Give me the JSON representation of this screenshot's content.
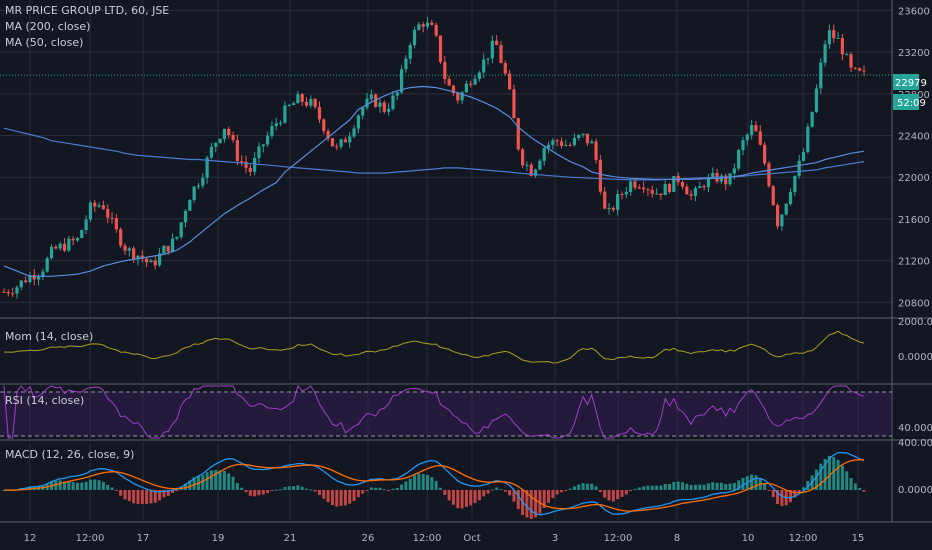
{
  "header": {
    "symbol": "MR PRICE GROUP LTD, 60, JSE",
    "ma200": "MA (200, close)",
    "ma50": "MA (50, close)"
  },
  "indicators": {
    "mom": "Mom (14, close)",
    "rsi": "RSI (14, close)",
    "macd": "MACD (12, 26, close, 9)"
  },
  "badges": {
    "last_price": "22979",
    "countdown": "52:09"
  },
  "colors": {
    "bg": "#131722",
    "grid": "#2a2e39",
    "up": "#26a69a",
    "down": "#ef5350",
    "ma200": "#4a7bd0",
    "ma50": "#5b8de0",
    "mom": "#a8a020",
    "rsi": "#a03fc8",
    "macd": "#2196f3",
    "signal": "#ff6d00"
  },
  "chart_data": {
    "type": "candlestick",
    "x_tick_labels": [
      "12",
      "12:00",
      "17",
      "19",
      "21",
      "26",
      "12:00",
      "Oct",
      "3",
      "12:00",
      "8",
      "10",
      "12:00",
      "15"
    ],
    "price_axis_ticks": [
      23600,
      23200,
      22800,
      22400,
      22000,
      21600,
      21200,
      20800
    ],
    "price_range": [
      20650,
      23700
    ],
    "mom_ticks": [
      "2000.0000",
      "0.0000"
    ],
    "rsi_ticks": [
      "40.0000"
    ],
    "macd_ticks": [
      "400.0000",
      "0.0000"
    ],
    "price_path": [
      20900,
      20950,
      21050,
      21100,
      21300,
      21350,
      21400,
      21700,
      21750,
      21500,
      21300,
      21250,
      21150,
      21300,
      21400,
      21800,
      22000,
      22300,
      22500,
      22200,
      22050,
      22300,
      22500,
      22650,
      22750,
      22700,
      22500,
      22250,
      22400,
      22650,
      22750,
      22650,
      22800,
      23300,
      23500,
      23400,
      22900,
      22750,
      22950,
      23100,
      23300,
      22900,
      22200,
      22050,
      22300,
      22350,
      22300,
      22400,
      22300,
      21600,
      21800,
      21950,
      21950,
      21850,
      21900,
      22000,
      21800,
      21950,
      22000,
      21950,
      22300,
      22500,
      22100,
      21550,
      21900,
      22200,
      22750,
      23400,
      23300,
      23000,
      22980
    ],
    "ma50_path": [
      21150,
      21100,
      21050,
      21050,
      21050,
      21060,
      21070,
      21100,
      21150,
      21180,
      21200,
      21220,
      21240,
      21260,
      21300,
      21380,
      21450,
      21550,
      21650,
      21730,
      21800,
      21880,
      21950,
      22050,
      22150,
      22250,
      22350,
      22450,
      22550,
      22650,
      22720,
      22780,
      22830,
      22860,
      22870,
      22860,
      22840,
      22810,
      22770,
      22720,
      22660,
      22580,
      22480,
      22380,
      22300,
      22220,
      22150,
      22100,
      22050,
      22020,
      22000,
      21990,
      21985,
      21980,
      21980,
      21980,
      21980,
      21985,
      21990,
      22000,
      22020,
      22040,
      22060,
      22080,
      22100,
      22120,
      22140,
      22170,
      22200,
      22230,
      22250
    ],
    "ma200_path": [
      22470,
      22440,
      22410,
      22380,
      22350,
      22330,
      22310,
      22290,
      22270,
      22250,
      22230,
      22210,
      22200,
      22190,
      22180,
      22170,
      22170,
      22160,
      22150,
      22140,
      22130,
      22120,
      22110,
      22100,
      22090,
      22080,
      22070,
      22060,
      22050,
      22040,
      22040,
      22040,
      22050,
      22060,
      22070,
      22080,
      22090,
      22090,
      22080,
      22070,
      22060,
      22050,
      22040,
      22030,
      22020,
      22010,
      22000,
      21995,
      21990,
      21985,
      21980,
      21975,
      21975,
      21975,
      21980,
      21985,
      21990,
      21995,
      22000,
      22000,
      22010,
      22020,
      22030,
      22040,
      22050,
      22060,
      22070,
      22090,
      22110,
      22130,
      22150
    ]
  }
}
